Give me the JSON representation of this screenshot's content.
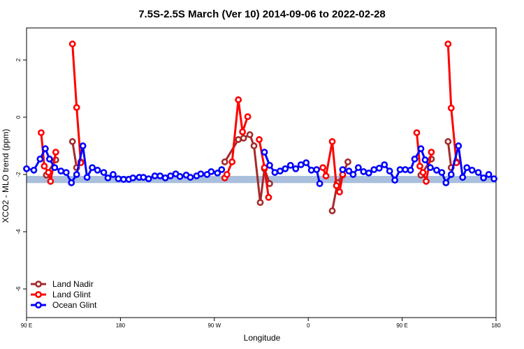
{
  "chart_data": {
    "type": "line",
    "title": "7.5S-2.5S March (Ver 10)   2014-09-06 to 2022-02-28",
    "x_label": "Longitude",
    "y_label": "XCO2 - MLO trend (ppm)",
    "xlim": [
      90,
      540
    ],
    "xticks": [
      {
        "value": 90,
        "label": "90 E"
      },
      {
        "value": 180,
        "label": "180"
      },
      {
        "value": 270,
        "label": "90 W"
      },
      {
        "value": 360,
        "label": "0"
      },
      {
        "value": 450,
        "label": "90 E"
      },
      {
        "value": 540,
        "label": "180"
      }
    ],
    "ylim": [
      -7,
      3.12
    ],
    "yticks": [
      -6,
      -4,
      -2,
      0,
      2
    ],
    "band": [
      -2.3,
      -2.05
    ],
    "legend": "bottom-left",
    "series": [
      {
        "name": "Land Nadir",
        "color": "#a52a2a",
        "x": [
          109,
          118,
          null,
          134,
          138,
          142,
          null,
          280,
          293,
          298,
          304,
          308,
          314,
          318,
          323,
          null,
          383,
          388,
          393,
          398,
          null,
          468,
          478,
          null,
          494,
          497,
          502
        ],
        "values": [
          -2.02,
          -1.49,
          null,
          -0.85,
          -1.76,
          -1.56,
          null,
          -1.56,
          -0.78,
          -0.73,
          -0.61,
          -1.0,
          -2.98,
          -1.8,
          -2.32,
          null,
          -3.27,
          -2.29,
          -2.02,
          -1.56,
          null,
          -2.02,
          -1.46,
          null,
          -0.85,
          -1.76,
          -1.56
        ]
      },
      {
        "name": "Land Glint",
        "color": "#ff0000",
        "x": [
          104,
          107,
          111,
          113,
          118,
          null,
          134,
          138,
          142,
          null,
          280,
          282,
          287,
          293,
          297,
          302,
          null,
          313,
          318,
          322,
          null,
          374,
          377,
          383,
          387,
          390,
          393,
          null,
          464,
          467,
          470,
          473,
          478,
          null,
          494,
          497,
          502
        ],
        "values": [
          -0.54,
          -1.71,
          -1.93,
          -2.24,
          -1.22,
          null,
          2.56,
          0.34,
          -1.59,
          null,
          -2.12,
          -2.0,
          -1.56,
          0.61,
          -0.51,
          0.02,
          null,
          -0.78,
          -1.76,
          -2.8,
          null,
          -1.76,
          -2.05,
          -0.85,
          -2.39,
          -2.61,
          -2.0,
          null,
          -0.54,
          -1.71,
          -1.93,
          -2.24,
          -1.22,
          null,
          2.56,
          0.32,
          -1.59
        ]
      },
      {
        "name": "Ocean Glint",
        "color": "#0000ff",
        "x": [
          90,
          97,
          103,
          108,
          112,
          117,
          123,
          128,
          133,
          138,
          144,
          148,
          153,
          158,
          164,
          168,
          173,
          178,
          183,
          188,
          192,
          198,
          202,
          207,
          213,
          218,
          223,
          228,
          233,
          237,
          243,
          247,
          253,
          257,
          263,
          267,
          273,
          277,
          null,
          318,
          323,
          328,
          333,
          338,
          343,
          348,
          353,
          358,
          363,
          368,
          371,
          null,
          393,
          399,
          403,
          408,
          413,
          418,
          423,
          428,
          433,
          438,
          443,
          448,
          453,
          458,
          462,
          468,
          472,
          477,
          483,
          488,
          492,
          497,
          504,
          508,
          512,
          517,
          523,
          528,
          533,
          538
        ],
        "values": [
          -1.8,
          -1.85,
          -1.46,
          -1.1,
          -1.46,
          -1.76,
          -1.88,
          -1.93,
          -2.29,
          -2.0,
          -1.0,
          -2.1,
          -1.76,
          -1.85,
          -1.93,
          -2.12,
          -2.0,
          -2.15,
          -2.17,
          -2.17,
          -2.12,
          -2.1,
          -2.1,
          -2.15,
          -2.05,
          -2.05,
          -2.12,
          -2.05,
          -1.98,
          -2.07,
          -2.02,
          -2.1,
          -2.05,
          -1.98,
          -2.0,
          -1.9,
          -1.95,
          -1.83,
          null,
          -1.22,
          -1.68,
          -1.93,
          -1.88,
          -1.8,
          -1.68,
          -1.8,
          -1.66,
          -1.59,
          -1.85,
          -1.83,
          -2.32,
          null,
          -1.83,
          -1.88,
          -2.0,
          -1.76,
          -1.9,
          -1.95,
          -1.83,
          -1.78,
          -1.66,
          -1.88,
          -2.2,
          -1.83,
          -1.83,
          -1.85,
          -1.46,
          -1.1,
          -1.49,
          -1.76,
          -1.85,
          -1.93,
          -2.29,
          -2.0,
          -1.0,
          -2.1,
          -1.76,
          -1.85,
          -1.93,
          -2.12,
          -2.0,
          -2.15
        ]
      }
    ]
  }
}
